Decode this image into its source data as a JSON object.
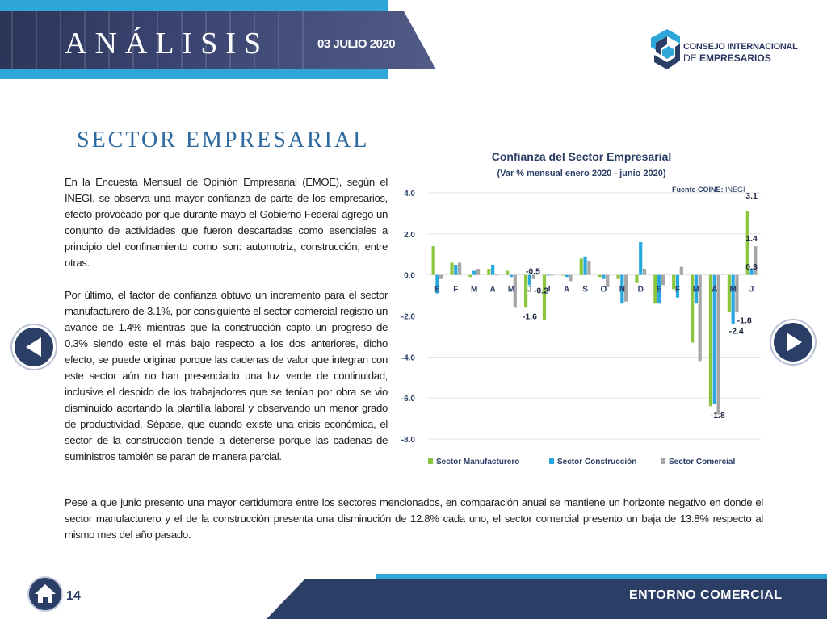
{
  "header": {
    "title": "ANÁLISIS",
    "date": "03 JULIO 2020"
  },
  "logo": {
    "line1": "CONSEJO INTERNACIONAL",
    "line2_prefix": "DE",
    "line2_main": "EMPRESARIOS"
  },
  "section_title": "SECTOR EMPRESARIAL",
  "paragraphs": [
    "En la Encuesta Mensual de Opinión Empresarial (EMOE), según el INEGI, se observa una mayor confianza de parte de los empresarios, efecto provocado por que durante mayo el Gobierno Federal agrego un conjunto de actividades que fueron descartadas como esenciales a principio del confinamiento como son: automotriz, construcción, entre otras.",
    "Por último, el factor de confianza obtuvo un incremento para el sector manufacturero de 3.1%, por consiguiente el sector comercial registro un avance de 1.4% mientras que la construcción capto un progreso de 0.3%  siendo este el más bajo respecto a los dos anteriores, dicho efecto, se puede originar porque las cadenas de valor que integran con este sector aún no han presenciado una luz verde de continuidad, inclusive el despido de los trabajadores que se tenían por obra se vio disminuido acortando la plantilla laboral y observando un menor grado de productividad. Sépase, que cuando existe una crisis económica, el sector de la construcción tiende a detenerse porque las cadenas de suministros también se paran de manera parcial.",
    "Pese a que junio presento una mayor certidumbre entre los sectores mencionados, en comparación anual se mantiene un horizonte negativo en donde el sector manufacturero y el de la construcción presenta una disminución de 12.8% cada uno, el sector comercial presento un baja de 13.8% respecto al mismo mes del año pasado."
  ],
  "footer": {
    "page_number": "14",
    "section": "ENTORNO COMERCIAL"
  },
  "icons": {
    "prev": "arrow-left-icon",
    "next": "arrow-right-icon",
    "home": "home-icon"
  },
  "colors": {
    "navy": "#2b3f66",
    "cyan": "#2ea6d8",
    "title_blue": "#2d6aa0",
    "manufacturero": "#8cc63f",
    "construccion": "#29a8e0",
    "comercial": "#a6a6a6"
  },
  "chart_data": {
    "type": "bar",
    "title": "Confianza del Sector Empresarial",
    "subtitle": "(Var % mensual enero 2020 - junio 2020)",
    "source_label": "Fuente COINE:",
    "source_value": "INEGI",
    "categories": [
      "E",
      "F",
      "M",
      "A",
      "M",
      "J",
      "J",
      "A",
      "S",
      "O",
      "N",
      "D",
      "E",
      "F",
      "M",
      "A",
      "M",
      "J"
    ],
    "yticks": [
      "4.0",
      "2.0",
      "0.0",
      "-2.0",
      "-4.0",
      "-6.0",
      "-8.0"
    ],
    "ylim": [
      -8,
      4
    ],
    "grid": true,
    "legend_position": "bottom",
    "series": [
      {
        "name": "Sector Manufacturero",
        "color": "#8cc63f",
        "values": [
          1.4,
          0.6,
          -0.1,
          0.3,
          0.2,
          -1.6,
          -2.2,
          0.0,
          0.8,
          -0.1,
          -0.2,
          -0.4,
          -1.4,
          -0.7,
          -3.3,
          -6.4,
          -1.8,
          3.1
        ]
      },
      {
        "name": "Sector Construcción",
        "color": "#29a8e0",
        "values": [
          -0.9,
          0.5,
          0.2,
          0.5,
          -0.1,
          -0.5,
          0.0,
          -0.1,
          0.9,
          -0.2,
          -1.4,
          1.6,
          -1.4,
          -1.1,
          -1.4,
          -6.3,
          -2.4,
          0.3
        ]
      },
      {
        "name": "Sector Comercial",
        "color": "#a6a6a6",
        "values": [
          -0.2,
          0.6,
          0.3,
          0.0,
          -1.6,
          -0.2,
          0.0,
          -0.3,
          0.7,
          -0.6,
          -1.3,
          0.3,
          -0.5,
          0.4,
          -4.2,
          -6.8,
          -1.8,
          1.4
        ]
      }
    ],
    "data_labels": [
      "3.1",
      "1.4",
      "0.3",
      "-0.2",
      "-0.5",
      "-1.6",
      "-1.8",
      "-1.8",
      "-2.4"
    ]
  }
}
